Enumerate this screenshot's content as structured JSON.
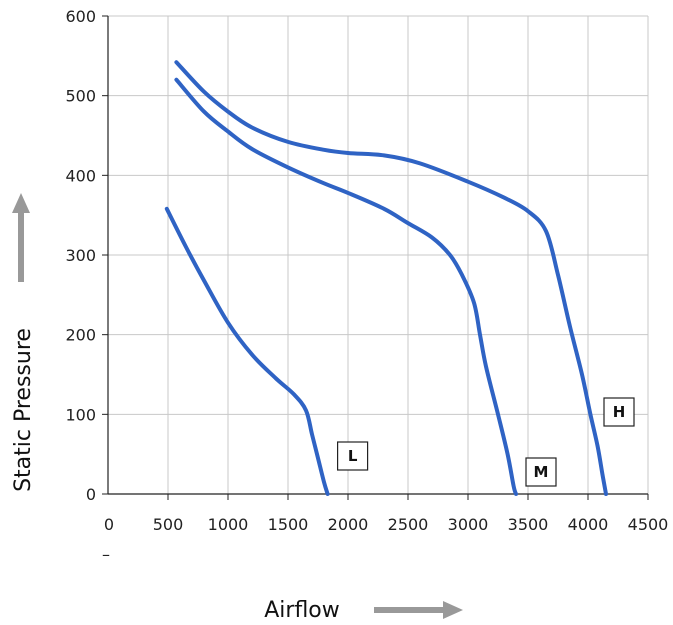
{
  "chart_data": {
    "type": "line",
    "xlabel": "Airflow",
    "ylabel": "Static Pressure",
    "xlim": [
      0,
      4500
    ],
    "ylim": [
      0,
      600
    ],
    "xticks": [
      0,
      500,
      1000,
      1500,
      2000,
      2500,
      3000,
      3500,
      4000,
      4500
    ],
    "yticks": [
      0,
      100,
      200,
      300,
      400,
      500,
      600
    ],
    "x_extra_mark": "–",
    "grid": true,
    "line_color": "#2f63c4",
    "arrow_color": "#999999",
    "series": [
      {
        "name": "L",
        "points": [
          [
            490,
            358
          ],
          [
            650,
            310
          ],
          [
            800,
            268
          ],
          [
            1000,
            215
          ],
          [
            1200,
            175
          ],
          [
            1400,
            145
          ],
          [
            1550,
            125
          ],
          [
            1650,
            105
          ],
          [
            1700,
            75
          ],
          [
            1750,
            45
          ],
          [
            1800,
            15
          ],
          [
            1830,
            0
          ]
        ]
      },
      {
        "name": "M",
        "points": [
          [
            570,
            520
          ],
          [
            800,
            480
          ],
          [
            1000,
            455
          ],
          [
            1200,
            433
          ],
          [
            1500,
            410
          ],
          [
            1800,
            390
          ],
          [
            2000,
            378
          ],
          [
            2300,
            358
          ],
          [
            2500,
            340
          ],
          [
            2700,
            322
          ],
          [
            2850,
            300
          ],
          [
            2950,
            275
          ],
          [
            3050,
            240
          ],
          [
            3100,
            200
          ],
          [
            3150,
            160
          ],
          [
            3250,
            100
          ],
          [
            3330,
            50
          ],
          [
            3380,
            10
          ],
          [
            3400,
            0
          ]
        ]
      },
      {
        "name": "H",
        "points": [
          [
            570,
            542
          ],
          [
            800,
            505
          ],
          [
            1000,
            480
          ],
          [
            1200,
            460
          ],
          [
            1500,
            442
          ],
          [
            1800,
            432
          ],
          [
            2000,
            428
          ],
          [
            2300,
            425
          ],
          [
            2600,
            415
          ],
          [
            3000,
            392
          ],
          [
            3300,
            372
          ],
          [
            3500,
            355
          ],
          [
            3650,
            330
          ],
          [
            3750,
            275
          ],
          [
            3850,
            210
          ],
          [
            3950,
            150
          ],
          [
            4020,
            100
          ],
          [
            4080,
            60
          ],
          [
            4120,
            25
          ],
          [
            4150,
            0
          ]
        ]
      }
    ]
  }
}
